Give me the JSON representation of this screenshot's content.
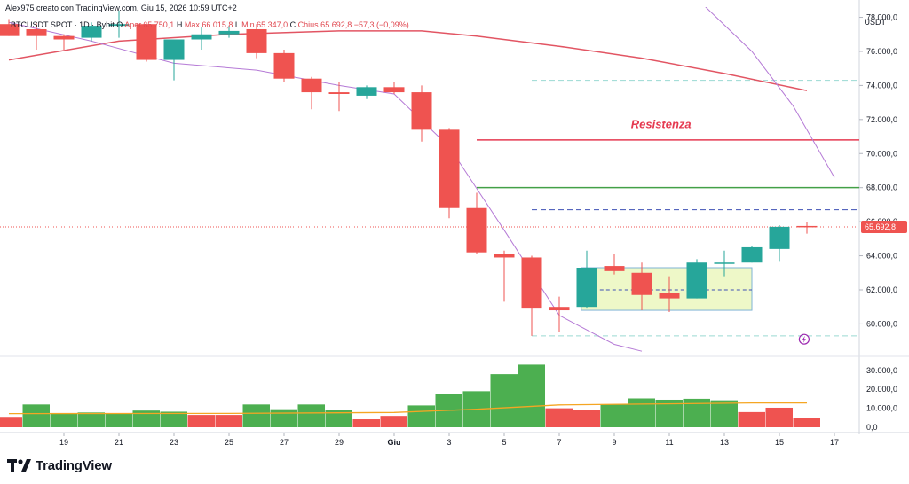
{
  "header": {
    "credit": "Alex975 creato con TradingView.com, Giu 15, 2026 10:59 UTC+2",
    "symbol": "BTCUSDT SPOT · 1D · Bybit",
    "open_label": "O",
    "open": "Aper.65.750,1",
    "high_label": "H",
    "high": "Max.66.015,8",
    "low_label": "L",
    "low": "Min.65.347,0",
    "close_label": "C",
    "close": "Chius.65.692,8",
    "change": "−57,3 (−0,09%)"
  },
  "currency": "USDT",
  "branding": {
    "name": "TradingView"
  },
  "colors": {
    "up": "#26a69a",
    "down": "#ef5350",
    "vol_up": "#4caf50",
    "vol_down": "#ef5350",
    "ma_long": "#e25563",
    "ma_short": "#b57ad6",
    "resistance": "#e53950",
    "green_level": "#43a047",
    "blue_dashed": "#3f51b5",
    "cyan_dashed": "#9ad9d2",
    "box_fill": "#eef8c8",
    "box_border": "#7fb3d5",
    "vol_ma": "#f5a623",
    "price_tag": "#ef5350"
  },
  "chart_data": {
    "type": "candlestick",
    "title": "",
    "x_ticks": [
      "19",
      "21",
      "23",
      "25",
      "27",
      "29",
      "Giu",
      "3",
      "5",
      "7",
      "9",
      "11",
      "13",
      "15",
      "17"
    ],
    "price_ticks": [
      "78.000,0",
      "76.000,0",
      "74.000,0",
      "72.000,0",
      "70.000,0",
      "68.000,0",
      "66.000,0",
      "64.000,0",
      "62.000,0",
      "60.000,0"
    ],
    "price_range": [
      58200,
      78600
    ],
    "volume_ticks": [
      "30.000,0",
      "20.000,0",
      "10.000,0",
      "0,0"
    ],
    "volume_range": [
      0,
      36000
    ],
    "last_price": 65692.8,
    "last_price_label": "65.692,8",
    "candles": [
      {
        "x": 17,
        "o": 77600,
        "h": 77900,
        "l": 76900,
        "c": 76900
      },
      {
        "x": 18,
        "o": 77300,
        "h": 77700,
        "l": 76100,
        "c": 76900
      },
      {
        "x": 19,
        "o": 76900,
        "h": 77000,
        "l": 76100,
        "c": 76700
      },
      {
        "x": 20,
        "o": 76800,
        "h": 77700,
        "l": 76600,
        "c": 77500
      },
      {
        "x": 21,
        "o": 77500,
        "h": 78400,
        "l": 76800,
        "c": 77600
      },
      {
        "x": 22,
        "o": 77600,
        "h": 77700,
        "l": 75400,
        "c": 75500
      },
      {
        "x": 23,
        "o": 75500,
        "h": 76700,
        "l": 74300,
        "c": 76700
      },
      {
        "x": 24,
        "o": 76700,
        "h": 77400,
        "l": 76100,
        "c": 77000
      },
      {
        "x": 25,
        "o": 77000,
        "h": 77500,
        "l": 76800,
        "c": 77200
      },
      {
        "x": 26,
        "o": 77300,
        "h": 77600,
        "l": 75600,
        "c": 75900
      },
      {
        "x": 27,
        "o": 75900,
        "h": 76100,
        "l": 74200,
        "c": 74400
      },
      {
        "x": 28,
        "o": 74400,
        "h": 74500,
        "l": 72600,
        "c": 73600
      },
      {
        "x": 29,
        "o": 73600,
        "h": 74200,
        "l": 72500,
        "c": 73500
      },
      {
        "x": 30,
        "o": 73400,
        "h": 74000,
        "l": 73200,
        "c": 73900
      },
      {
        "x": 31,
        "o": 73900,
        "h": 74200,
        "l": 73500,
        "c": 73600
      },
      {
        "x": 32,
        "o": 73600,
        "h": 74000,
        "l": 70700,
        "c": 71400
      },
      {
        "x": 33,
        "o": 71400,
        "h": 71500,
        "l": 66200,
        "c": 66800
      },
      {
        "x": 34,
        "o": 66800,
        "h": 67700,
        "l": 64100,
        "c": 64200
      },
      {
        "x": 35,
        "o": 64100,
        "h": 64300,
        "l": 61300,
        "c": 63900
      },
      {
        "x": 36,
        "o": 63900,
        "h": 64000,
        "l": 59300,
        "c": 60900
      },
      {
        "x": 37,
        "o": 61000,
        "h": 61600,
        "l": 59500,
        "c": 60800
      },
      {
        "x": 38,
        "o": 61000,
        "h": 64300,
        "l": 60900,
        "c": 63300
      },
      {
        "x": 39,
        "o": 63400,
        "h": 64100,
        "l": 62900,
        "c": 63100
      },
      {
        "x": 40,
        "o": 63000,
        "h": 63600,
        "l": 60800,
        "c": 61700
      },
      {
        "x": 41,
        "o": 61800,
        "h": 62800,
        "l": 60700,
        "c": 61500
      },
      {
        "x": 42,
        "o": 61500,
        "h": 63800,
        "l": 61500,
        "c": 63600
      },
      {
        "x": 43,
        "o": 63600,
        "h": 64300,
        "l": 62800,
        "c": 63600
      },
      {
        "x": 44,
        "o": 63600,
        "h": 64600,
        "l": 63600,
        "c": 64500
      },
      {
        "x": 45,
        "o": 64400,
        "h": 65800,
        "l": 63700,
        "c": 65700
      },
      {
        "x": 46,
        "o": 65750,
        "h": 66000,
        "l": 65300,
        "c": 65690
      }
    ],
    "volumes": [
      {
        "x": 17,
        "v": 5500,
        "up": false
      },
      {
        "x": 18,
        "v": 12000,
        "up": true
      },
      {
        "x": 19,
        "v": 7500,
        "up": true
      },
      {
        "x": 20,
        "v": 7800,
        "up": true
      },
      {
        "x": 21,
        "v": 7200,
        "up": true
      },
      {
        "x": 22,
        "v": 8800,
        "up": true
      },
      {
        "x": 23,
        "v": 8200,
        "up": true
      },
      {
        "x": 24,
        "v": 6500,
        "up": false
      },
      {
        "x": 25,
        "v": 6500,
        "up": false
      },
      {
        "x": 26,
        "v": 12000,
        "up": true
      },
      {
        "x": 27,
        "v": 9500,
        "up": true
      },
      {
        "x": 28,
        "v": 12000,
        "up": true
      },
      {
        "x": 29,
        "v": 9200,
        "up": true
      },
      {
        "x": 30,
        "v": 4200,
        "up": false
      },
      {
        "x": 31,
        "v": 6000,
        "up": false
      },
      {
        "x": 32,
        "v": 11500,
        "up": true
      },
      {
        "x": 33,
        "v": 17500,
        "up": true
      },
      {
        "x": 34,
        "v": 19000,
        "up": true
      },
      {
        "x": 35,
        "v": 28000,
        "up": true
      },
      {
        "x": 36,
        "v": 33000,
        "up": true
      },
      {
        "x": 37,
        "v": 10000,
        "up": false
      },
      {
        "x": 38,
        "v": 9000,
        "up": false
      },
      {
        "x": 39,
        "v": 12000,
        "up": true
      },
      {
        "x": 40,
        "v": 15200,
        "up": true
      },
      {
        "x": 41,
        "v": 14500,
        "up": true
      },
      {
        "x": 42,
        "v": 15000,
        "up": true
      },
      {
        "x": 43,
        "v": 14200,
        "up": true
      },
      {
        "x": 44,
        "v": 8000,
        "up": false
      },
      {
        "x": 45,
        "v": 10300,
        "up": false
      },
      {
        "x": 46,
        "v": 4800,
        "up": false
      }
    ],
    "vol_ma": [
      [
        17,
        7200
      ],
      [
        25,
        7300
      ],
      [
        31,
        7800
      ],
      [
        34,
        9500
      ],
      [
        37,
        11800
      ],
      [
        40,
        12200
      ],
      [
        44,
        12800
      ],
      [
        46,
        12800
      ]
    ],
    "ma_long": [
      [
        17,
        75500
      ],
      [
        21,
        76600
      ],
      [
        25,
        77000
      ],
      [
        29,
        77200
      ],
      [
        32,
        77200
      ],
      [
        34,
        76900
      ],
      [
        37,
        76300
      ],
      [
        40,
        75600
      ],
      [
        43,
        74700
      ],
      [
        46,
        73700
      ]
    ],
    "ma_short": [
      [
        17,
        77700
      ],
      [
        20,
        76600
      ],
      [
        23,
        75300
      ],
      [
        26,
        74900
      ],
      [
        29,
        74000
      ],
      [
        31,
        73500
      ],
      [
        33,
        70400
      ],
      [
        35,
        65500
      ],
      [
        37,
        60500
      ],
      [
        39,
        58800
      ],
      [
        40,
        58400
      ]
    ],
    "ma_short_upper": [
      [
        39.5,
        81200
      ],
      [
        42,
        79100
      ],
      [
        44,
        76000
      ],
      [
        45.5,
        72800
      ],
      [
        47,
        68600
      ]
    ],
    "levels": [
      {
        "name": "resistenza",
        "y": 70800,
        "from": 34,
        "to": 49,
        "style": "solid"
      },
      {
        "name": "green",
        "y": 68000,
        "from": 34,
        "to": 49,
        "style": "solid"
      },
      {
        "name": "blue",
        "y": 66700,
        "from": 36,
        "to": 49,
        "style": "dashed"
      },
      {
        "name": "cyan_top",
        "y": 74300,
        "from": 36,
        "to": 49,
        "style": "dashed"
      },
      {
        "name": "cyan_bottom",
        "y": 59300,
        "from": 36,
        "to": 49,
        "style": "dashed"
      }
    ],
    "range_box": {
      "x0": 37.8,
      "x1": 44.0,
      "y0": 60800,
      "y1": 63300,
      "mid": 62000
    },
    "annotation": "Resistenza"
  }
}
